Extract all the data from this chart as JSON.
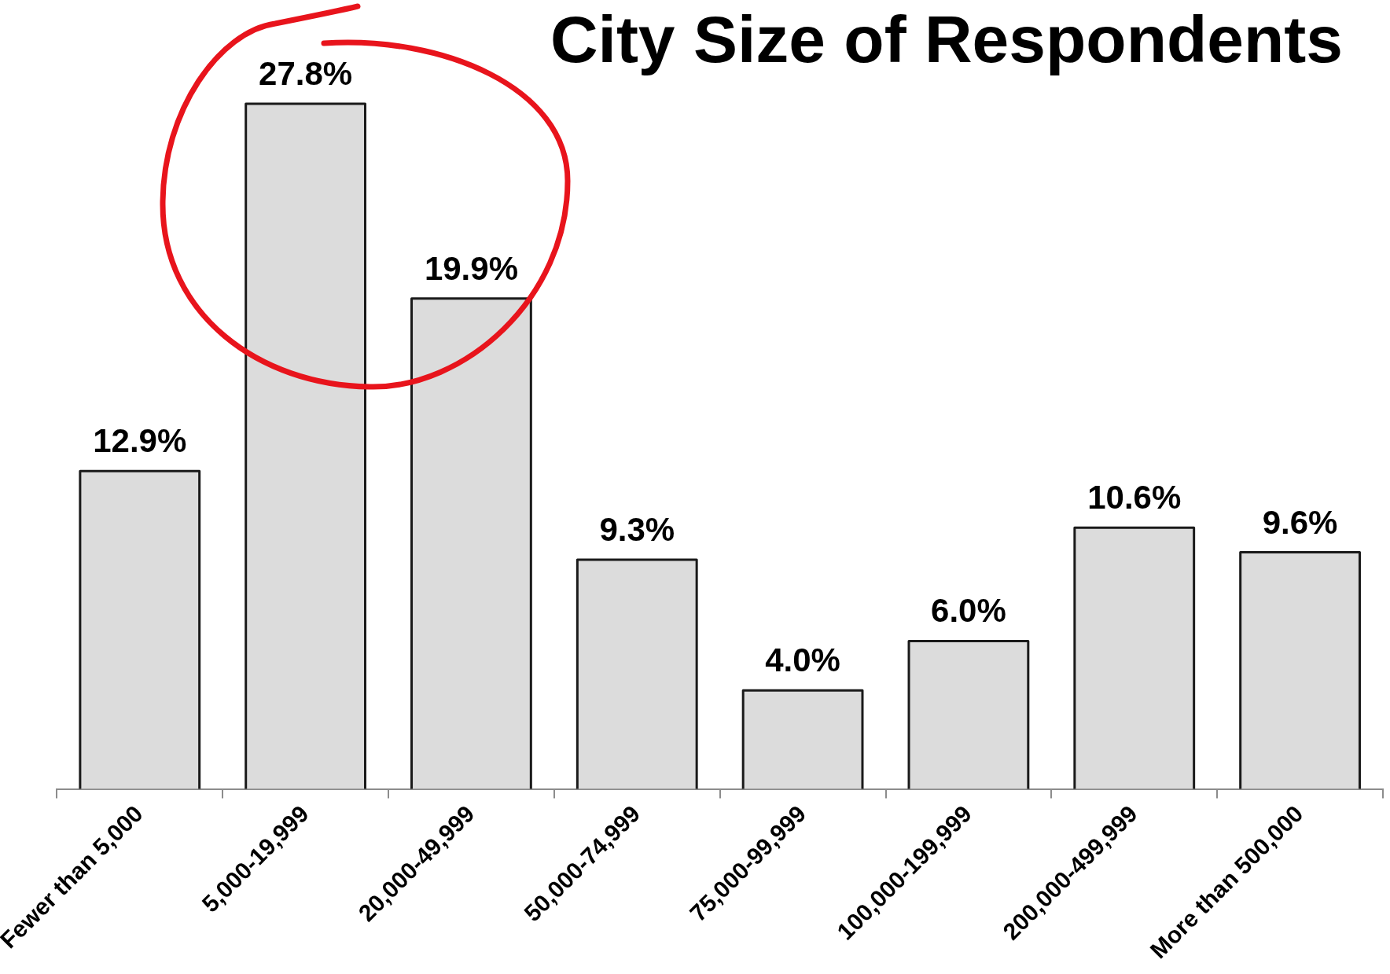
{
  "chart_data": {
    "type": "bar",
    "title": "City Size of Respondents",
    "categories": [
      "Fewer than 5,000",
      "5,000-19,999",
      "20,000-49,999",
      "50,000-74,999",
      "75,000-99,999",
      "100,000-199,999",
      "200,000-499,999",
      "More than 500,000"
    ],
    "values": [
      12.9,
      27.8,
      19.9,
      9.3,
      4.0,
      6.0,
      10.6,
      9.6
    ],
    "value_labels": [
      "12.9%",
      "27.8%",
      "19.9%",
      "9.3%",
      "4.0%",
      "6.0%",
      "10.6%",
      "9.6%"
    ],
    "color": "#dcdcdc",
    "tick_labels": "x"
  }
}
